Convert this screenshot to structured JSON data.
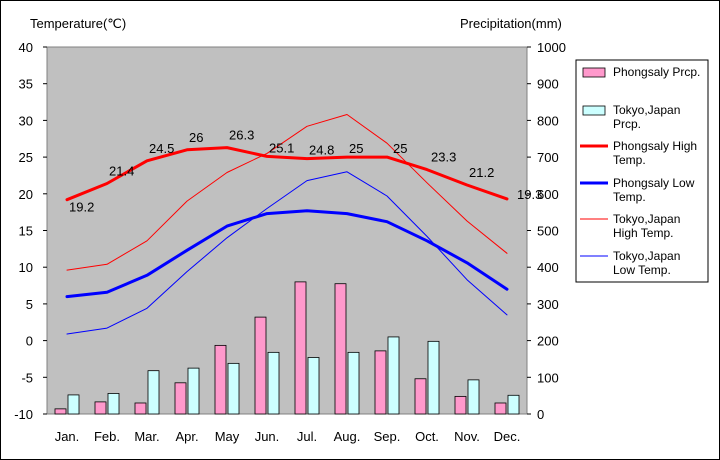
{
  "chart_data": {
    "type": "bar",
    "title": "",
    "ylabel_left": "Temperature(℃)",
    "ylabel_right": "Precipitation(mm)",
    "ylim_left": [
      -10,
      40
    ],
    "ylim_right": [
      0,
      1000
    ],
    "yticks_left": [
      "40",
      "35",
      "30",
      "25",
      "20",
      "15",
      "10",
      "5",
      "0",
      "-5",
      "-10"
    ],
    "yticks_right": [
      "1000",
      "900",
      "800",
      "700",
      "600",
      "500",
      "400",
      "300",
      "200",
      "100",
      "0"
    ],
    "categories": [
      "Jan.",
      "Feb.",
      "Mar.",
      "Apr.",
      "May",
      "Jun.",
      "Jul.",
      "Aug.",
      "Sep.",
      "Oct.",
      "Nov.",
      "Dec."
    ],
    "legend_position": "right",
    "grid": false,
    "bars": [
      {
        "name": "Phongsaly Prcp.",
        "color": "#ff99cc",
        "values": [
          14,
          33,
          30,
          85,
          187,
          264,
          360,
          355,
          172,
          96,
          48,
          30
        ]
      },
      {
        "name": "Tokyo,Japan Prcp.",
        "color": "#ccffff",
        "values": [
          52,
          56,
          118,
          125,
          138,
          168,
          154,
          168,
          210,
          198,
          93,
          51
        ]
      }
    ],
    "lines": [
      {
        "name": "Phongsaly High Temp.",
        "color": "#ff0000",
        "width": 3,
        "values": [
          19.2,
          21.4,
          24.5,
          26,
          26.3,
          25.1,
          24.8,
          25,
          25,
          23.3,
          21.2,
          19.3
        ],
        "labels": [
          "19.2",
          "21.4",
          "24.5",
          "26",
          "26.3",
          "25.1",
          "24.8",
          "25",
          "25",
          "23.3",
          "21.2",
          "19.3"
        ]
      },
      {
        "name": "Phongsaly Low Temp.",
        "color": "#0000ff",
        "width": 3,
        "values": [
          6.0,
          6.6,
          8.9,
          12.3,
          15.6,
          17.3,
          17.7,
          17.3,
          16.2,
          13.6,
          10.6,
          7.0
        ]
      },
      {
        "name": "Tokyo,Japan High Temp.",
        "color": "#ff0000",
        "width": 1,
        "values": [
          9.6,
          10.4,
          13.6,
          19.0,
          22.9,
          25.5,
          29.2,
          30.8,
          26.9,
          21.5,
          16.3,
          11.9
        ]
      },
      {
        "name": "Tokyo,Japan Low Temp.",
        "color": "#0000ff",
        "width": 1,
        "values": [
          0.9,
          1.7,
          4.4,
          9.4,
          14.0,
          18.0,
          21.8,
          23.0,
          19.7,
          14.2,
          8.3,
          3.5
        ]
      }
    ]
  }
}
